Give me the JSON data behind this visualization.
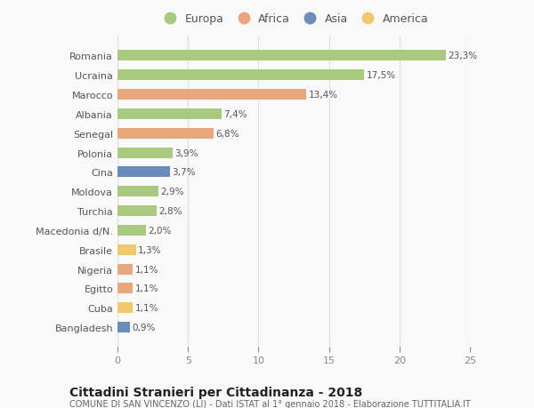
{
  "countries": [
    "Romania",
    "Ucraina",
    "Marocco",
    "Albania",
    "Senegal",
    "Polonia",
    "Cina",
    "Moldova",
    "Turchia",
    "Macedonia d/N.",
    "Brasile",
    "Nigeria",
    "Egitto",
    "Cuba",
    "Bangladesh"
  ],
  "values": [
    23.3,
    17.5,
    13.4,
    7.4,
    6.8,
    3.9,
    3.7,
    2.9,
    2.8,
    2.0,
    1.3,
    1.1,
    1.1,
    1.1,
    0.9
  ],
  "labels": [
    "23,3%",
    "17,5%",
    "13,4%",
    "7,4%",
    "6,8%",
    "3,9%",
    "3,7%",
    "2,9%",
    "2,8%",
    "2,0%",
    "1,3%",
    "1,1%",
    "1,1%",
    "1,1%",
    "0,9%"
  ],
  "colors": [
    "#a8c97f",
    "#a8c97f",
    "#e8a87c",
    "#a8c97f",
    "#e8a87c",
    "#a8c97f",
    "#6b8cba",
    "#a8c97f",
    "#a8c97f",
    "#a8c97f",
    "#f0c96e",
    "#e8a87c",
    "#e8a87c",
    "#f0c96e",
    "#6b8cba"
  ],
  "legend_labels": [
    "Europa",
    "Africa",
    "Asia",
    "America"
  ],
  "legend_colors": [
    "#a8c97f",
    "#e8a87c",
    "#6b8cba",
    "#f0c96e"
  ],
  "title": "Cittadini Stranieri per Cittadinanza - 2018",
  "subtitle": "COMUNE DI SAN VINCENZO (LI) - Dati ISTAT al 1° gennaio 2018 - Elaborazione TUTTITALIA.IT",
  "xlim": [
    0,
    25
  ],
  "xticks": [
    0,
    5,
    10,
    15,
    20,
    25
  ],
  "background_color": "#f9f9f9",
  "grid_color": "#e0e0e0",
  "bar_height": 0.55,
  "label_fontsize": 7.5,
  "ytick_fontsize": 8,
  "xtick_fontsize": 8,
  "title_fontsize": 10,
  "subtitle_fontsize": 7,
  "legend_fontsize": 9
}
